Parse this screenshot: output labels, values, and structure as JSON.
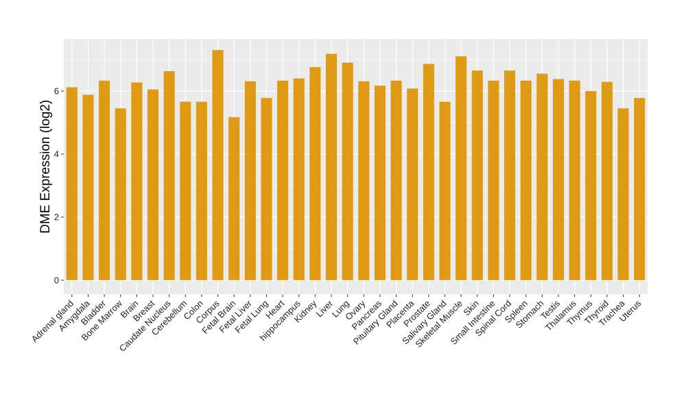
{
  "chart_data": {
    "type": "bar",
    "title": "",
    "xlabel": "",
    "ylabel": "DME Expression (log2)",
    "ylim": [
      -0.45,
      7.65
    ],
    "yticks": [
      0,
      2,
      4,
      6
    ],
    "grid": true,
    "legend": "none",
    "colors": {
      "bar": "#DE9A14",
      "panel": "#EBEBEB",
      "grid_major": "#FFFFFF",
      "tick": "#333333"
    },
    "categories": [
      "Adrenal gland",
      "Amygdala",
      "Bladder",
      "Bone Marrow",
      "Brain",
      "Breast",
      "Caudate Nucleus",
      "Cerebellum",
      "Colon",
      "Corpus",
      "Fetal Brain",
      "Fetal Liver",
      "Fetal Lung",
      "Heart",
      "hippocampus",
      "Kidney",
      "Liver",
      "Lung",
      "Ovary",
      "Pancreas",
      "Pituitary Gland",
      "Placenta",
      "Prostate",
      "Salivary Gland",
      "Skeletal Muscle",
      "Skin",
      "Small Intestine",
      "Spinal Cord",
      "Spleen",
      "Stomach",
      "Testis",
      "Thalamus",
      "Thymus",
      "Thyroid",
      "Trachea",
      "Uterus"
    ],
    "values": [
      6.12,
      5.88,
      6.33,
      5.45,
      6.27,
      6.05,
      6.63,
      5.66,
      5.66,
      7.3,
      5.17,
      6.31,
      5.78,
      6.33,
      6.4,
      6.76,
      7.18,
      6.9,
      6.31,
      6.17,
      6.33,
      6.08,
      6.86,
      5.66,
      7.1,
      6.65,
      6.33,
      6.65,
      6.33,
      6.55,
      6.38,
      6.33,
      6.0,
      6.29,
      5.45,
      5.78
    ]
  }
}
